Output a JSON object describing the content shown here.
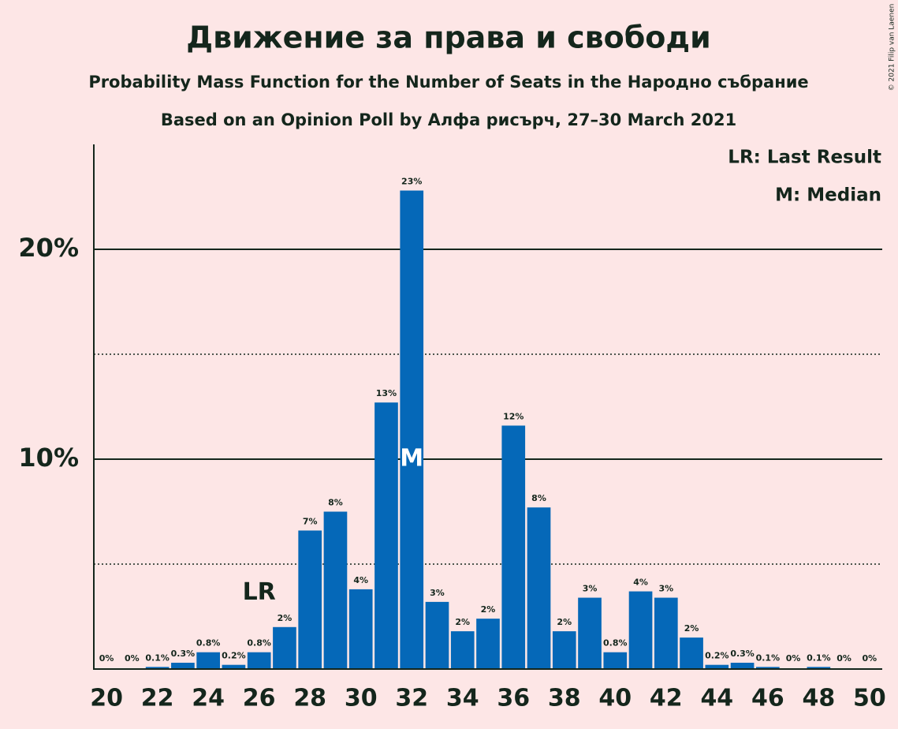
{
  "chart_data": {
    "type": "bar",
    "title": "Движение за права и свободи",
    "subtitle": "Probability Mass Function for the Number of Seats in the Народно събрание",
    "subtitle2": "Based on an Opinion Poll by Алфа рисърч, 27–30 March 2021",
    "credit": "© 2021 Filip van Laenen",
    "x": [
      20,
      21,
      22,
      23,
      24,
      25,
      26,
      27,
      28,
      29,
      30,
      31,
      32,
      33,
      34,
      35,
      36,
      37,
      38,
      39,
      40,
      41,
      42,
      43,
      44,
      45,
      46,
      47,
      48,
      49,
      50
    ],
    "values": [
      0,
      0,
      0.1,
      0.3,
      0.8,
      0.2,
      0.8,
      2.0,
      6.6,
      7.5,
      3.8,
      12.7,
      22.8,
      3.2,
      1.8,
      2.4,
      11.6,
      7.7,
      1.8,
      3.4,
      0.8,
      3.7,
      3.4,
      1.5,
      0.2,
      0.3,
      0.1,
      0,
      0.1,
      0,
      0
    ],
    "value_labels": [
      "0%",
      "0%",
      "0.1%",
      "0.3%",
      "0.8%",
      "0.2%",
      "0.8%",
      "2%",
      "7%",
      "8%",
      "4%",
      "13%",
      "23%",
      "3%",
      "2%",
      "2%",
      "12%",
      "8%",
      "2%",
      "3%",
      "0.8%",
      "4%",
      "3%",
      "2%",
      "0.2%",
      "0.3%",
      "0.1%",
      "0%",
      "0.1%",
      "0%",
      "0%"
    ],
    "color": "#0568b8",
    "xlim": [
      19.5,
      50.5
    ],
    "xticks": [
      20,
      22,
      24,
      26,
      28,
      30,
      32,
      34,
      36,
      38,
      40,
      42,
      44,
      46,
      48,
      50
    ],
    "ylim": [
      0,
      25
    ],
    "yticks": [
      {
        "value": 10,
        "label": "10%"
      },
      {
        "value": 20,
        "label": "20%"
      }
    ],
    "minor_yticks": [
      5,
      15
    ],
    "grid": true,
    "annotations": [
      {
        "text": "LR",
        "x": 26
      },
      {
        "text": "M",
        "x": 32
      }
    ],
    "legend": [
      "LR: Last Result",
      "M: Median"
    ]
  }
}
